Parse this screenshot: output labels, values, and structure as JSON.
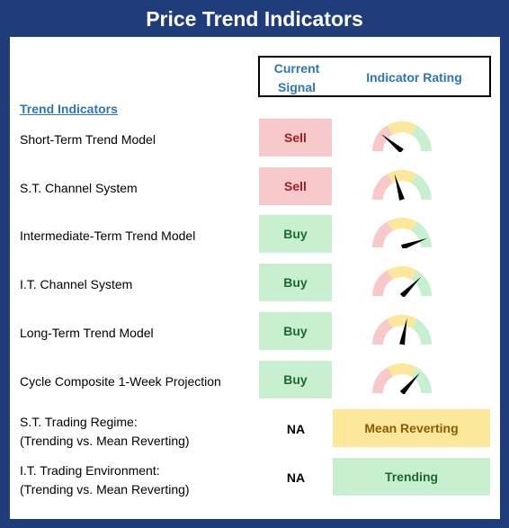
{
  "title": "Price Trend Indicators",
  "headers": {
    "signal_line1": "Current",
    "signal_line2": "Signal",
    "rating": "Indicator Rating"
  },
  "section_title": "Trend Indicators",
  "rows": [
    {
      "label": "Short-Term Trend Model",
      "signal": "Sell",
      "needle_fraction": 0.22
    },
    {
      "label": "S.T. Channel System",
      "signal": "Sell",
      "needle_fraction": 0.41
    },
    {
      "label": "Intermediate-Term Trend Model",
      "signal": "Buy",
      "needle_fraction": 0.89
    },
    {
      "label": "I.T. Channel System",
      "signal": "Buy",
      "needle_fraction": 0.75
    },
    {
      "label": "Long-Term Trend Model",
      "signal": "Buy",
      "needle_fraction": 0.56
    },
    {
      "label": "Cycle Composite 1-Week Projection",
      "signal": "Buy",
      "needle_fraction": 0.73
    }
  ],
  "regimes": [
    {
      "line1": "S.T. Trading Regime:",
      "line2": "(Trending vs. Mean Reverting)",
      "signal": "NA",
      "rating": "Mean Reverting"
    },
    {
      "line1": "I.T. Trading Environment:",
      "line2": "(Trending vs. Mean Reverting)",
      "signal": "NA",
      "rating": "Trending"
    }
  ],
  "colors": {
    "frame": "#1f3d7a",
    "header_text": "#2e75b6",
    "sell_bg": "#f8c9cb",
    "buy_bg": "#c8efcf",
    "mean_reverting_bg": "#fce79a",
    "gauge_red": "#f8c9cb",
    "gauge_yellow": "#fce79a",
    "gauge_green": "#c8efcf"
  }
}
